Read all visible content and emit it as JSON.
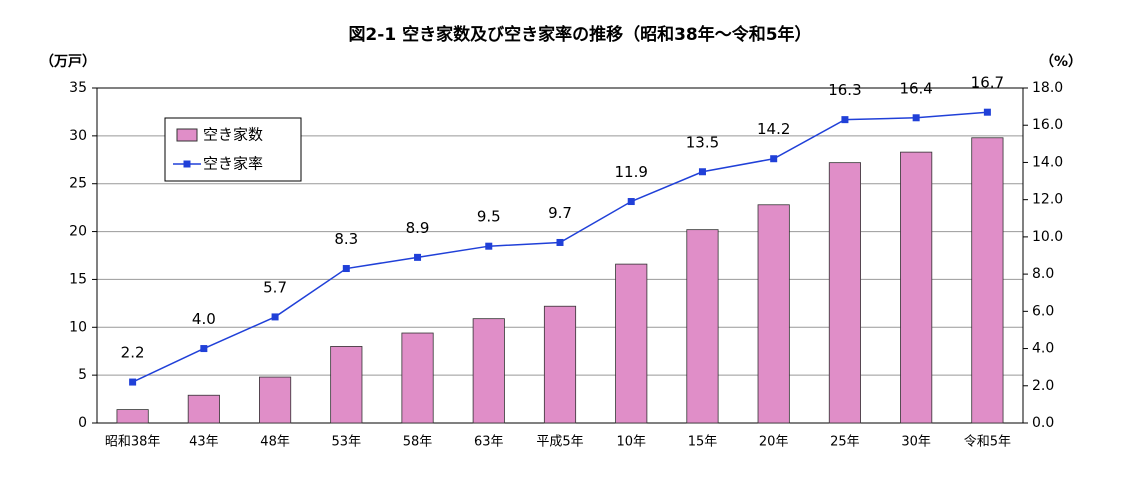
{
  "chart_data": {
    "type": "bar",
    "title": "図2-1 空き家数及び空き家率の推移（昭和38年～令和5年）",
    "y_label": "（万戸）",
    "y2_label": "（%）",
    "categories": [
      "昭和38年",
      "43年",
      "48年",
      "53年",
      "58年",
      "63年",
      "平成5年",
      "10年",
      "15年",
      "20年",
      "25年",
      "30年",
      "令和5年"
    ],
    "series": [
      {
        "name": "空き家数",
        "type": "bar",
        "color": "#e08ec8",
        "values": [
          1.4,
          2.9,
          4.8,
          8.0,
          9.4,
          10.9,
          12.2,
          16.6,
          20.2,
          22.8,
          27.2,
          28.3,
          29.8
        ]
      },
      {
        "name": "空き家率",
        "type": "line",
        "axis": "y2",
        "color": "#2040d8",
        "values": [
          2.2,
          4.0,
          5.7,
          8.3,
          8.9,
          9.5,
          9.7,
          11.9,
          13.5,
          14.2,
          16.3,
          16.4,
          16.7
        ],
        "value_labels": [
          "2.2",
          "4.0",
          "5.7",
          "8.3",
          "8.9",
          "9.5",
          "9.7",
          "11.9",
          "13.5",
          "14.2",
          "16.3",
          "16.4",
          "16.7"
        ]
      }
    ],
    "ylim": [
      0,
      35
    ],
    "yticks": [
      0,
      5,
      10,
      15,
      20,
      25,
      30,
      35
    ],
    "y2lim": [
      0,
      18
    ],
    "y2ticks": [
      {
        "value": 0,
        "label": "0.0"
      },
      {
        "value": 2,
        "label": "2.0"
      },
      {
        "value": 4,
        "label": "4.0"
      },
      {
        "value": 6,
        "label": "6.0"
      },
      {
        "value": 8,
        "label": "8.0"
      },
      {
        "value": 10,
        "label": "10.0"
      },
      {
        "value": 12,
        "label": "12.0"
      },
      {
        "value": 14,
        "label": "14.0"
      },
      {
        "value": 16,
        "label": "16.0"
      },
      {
        "value": 18,
        "label": "18.0"
      }
    ],
    "grid": true,
    "legend": "upper-left"
  }
}
